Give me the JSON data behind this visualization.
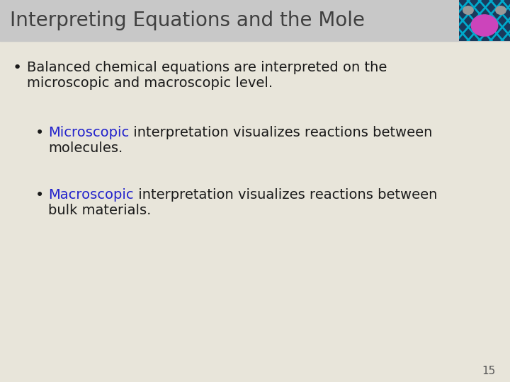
{
  "title": "Interpreting Equations and the Mole",
  "title_bg_color": "#c8c8c8",
  "title_text_color": "#404040",
  "body_bg_color": "#e8e5da",
  "title_fontsize": 20,
  "body_fontsize": 14,
  "sub_fontsize": 14,
  "bullet1_text_line1": "Balanced chemical equations are interpreted on the",
  "bullet1_text_line2": "microscopic and macroscopic level.",
  "bullet2_keyword": "Microscopic",
  "bullet2_rest_line1": " interpretation visualizes reactions between",
  "bullet2_rest_line2": "molecules.",
  "bullet3_keyword": "Macroscopic",
  "bullet3_rest_line1": " interpretation visualizes reactions between",
  "bullet3_rest_line2": "bulk materials.",
  "keyword_color": "#2222cc",
  "text_color": "#1a1a1a",
  "page_number": "15",
  "page_number_color": "#555555"
}
